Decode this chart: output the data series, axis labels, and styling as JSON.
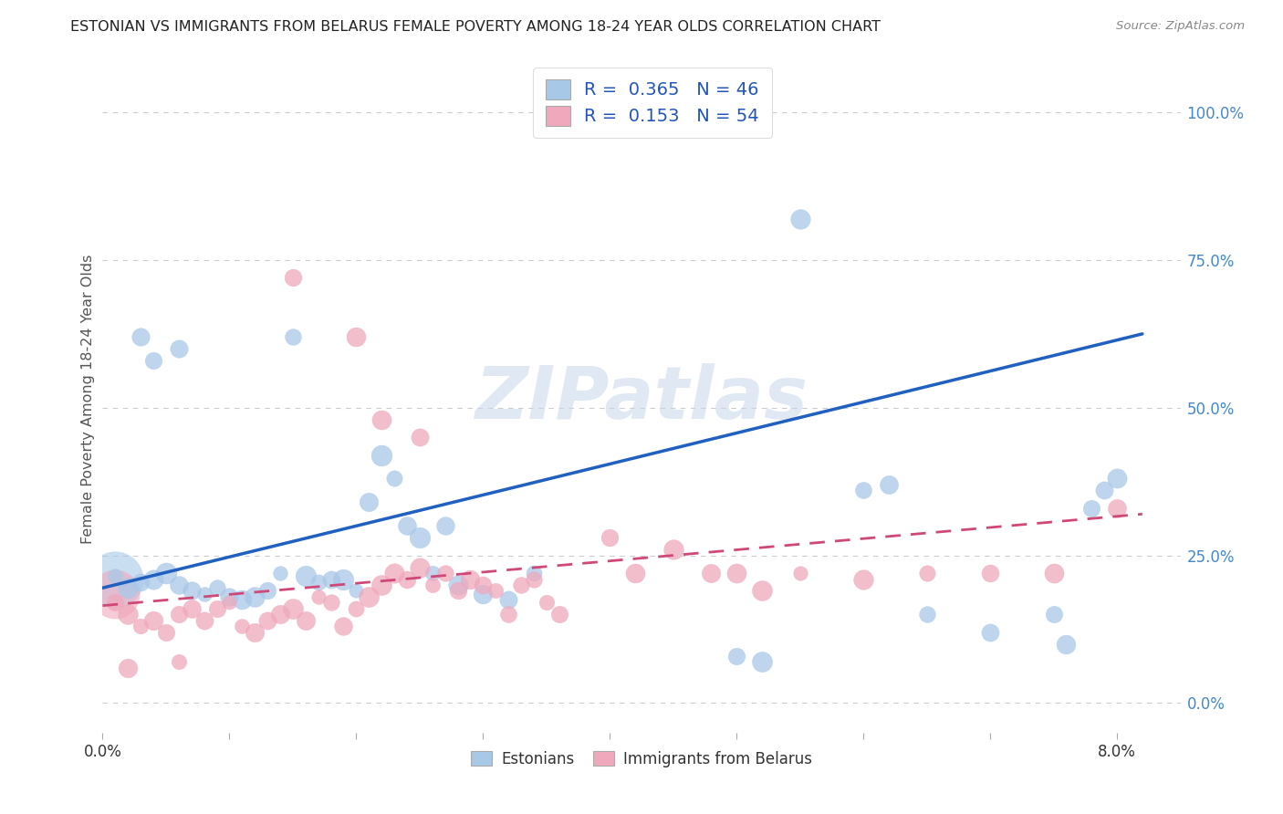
{
  "title": "ESTONIAN VS IMMIGRANTS FROM BELARUS FEMALE POVERTY AMONG 18-24 YEAR OLDS CORRELATION CHART",
  "source": "Source: ZipAtlas.com",
  "ylabel": "Female Poverty Among 18-24 Year Olds",
  "yticks": [
    "0.0%",
    "25.0%",
    "50.0%",
    "75.0%",
    "100.0%"
  ],
  "ytick_vals": [
    0.0,
    0.25,
    0.5,
    0.75,
    1.0
  ],
  "legend_blue_R": "0.365",
  "legend_blue_N": "46",
  "legend_pink_R": "0.153",
  "legend_pink_N": "54",
  "legend_label_blue": "Estonians",
  "legend_label_pink": "Immigrants from Belarus",
  "blue_color": "#a8c8e8",
  "pink_color": "#f0a8bc",
  "line_blue_color": "#2060c0",
  "line_pink_color": "#d04878",
  "watermark": "ZIPatlas",
  "blue_scatter": [
    [
      0.001,
      0.215
    ],
    [
      0.002,
      0.195
    ],
    [
      0.003,
      0.205
    ],
    [
      0.004,
      0.21
    ],
    [
      0.005,
      0.22
    ],
    [
      0.006,
      0.2
    ],
    [
      0.007,
      0.19
    ],
    [
      0.008,
      0.185
    ],
    [
      0.009,
      0.195
    ],
    [
      0.01,
      0.18
    ],
    [
      0.011,
      0.175
    ],
    [
      0.012,
      0.18
    ],
    [
      0.013,
      0.19
    ],
    [
      0.014,
      0.22
    ],
    [
      0.015,
      0.62
    ],
    [
      0.016,
      0.215
    ],
    [
      0.017,
      0.205
    ],
    [
      0.018,
      0.21
    ],
    [
      0.019,
      0.21
    ],
    [
      0.02,
      0.19
    ],
    [
      0.021,
      0.34
    ],
    [
      0.022,
      0.42
    ],
    [
      0.023,
      0.38
    ],
    [
      0.024,
      0.3
    ],
    [
      0.025,
      0.28
    ],
    [
      0.026,
      0.22
    ],
    [
      0.027,
      0.3
    ],
    [
      0.028,
      0.2
    ],
    [
      0.03,
      0.185
    ],
    [
      0.032,
      0.175
    ],
    [
      0.034,
      0.22
    ],
    [
      0.003,
      0.62
    ],
    [
      0.004,
      0.58
    ],
    [
      0.006,
      0.6
    ],
    [
      0.05,
      0.08
    ],
    [
      0.052,
      0.07
    ],
    [
      0.055,
      0.82
    ],
    [
      0.06,
      0.36
    ],
    [
      0.062,
      0.37
    ],
    [
      0.065,
      0.15
    ],
    [
      0.07,
      0.12
    ],
    [
      0.075,
      0.15
    ],
    [
      0.076,
      0.1
    ],
    [
      0.078,
      0.33
    ],
    [
      0.079,
      0.36
    ],
    [
      0.08,
      0.38
    ]
  ],
  "pink_scatter": [
    [
      0.001,
      0.17
    ],
    [
      0.002,
      0.15
    ],
    [
      0.003,
      0.13
    ],
    [
      0.004,
      0.14
    ],
    [
      0.005,
      0.12
    ],
    [
      0.006,
      0.15
    ],
    [
      0.007,
      0.16
    ],
    [
      0.008,
      0.14
    ],
    [
      0.009,
      0.16
    ],
    [
      0.01,
      0.17
    ],
    [
      0.011,
      0.13
    ],
    [
      0.012,
      0.12
    ],
    [
      0.013,
      0.14
    ],
    [
      0.014,
      0.15
    ],
    [
      0.015,
      0.16
    ],
    [
      0.016,
      0.14
    ],
    [
      0.017,
      0.18
    ],
    [
      0.018,
      0.17
    ],
    [
      0.019,
      0.13
    ],
    [
      0.02,
      0.16
    ],
    [
      0.021,
      0.18
    ],
    [
      0.022,
      0.2
    ],
    [
      0.023,
      0.22
    ],
    [
      0.024,
      0.21
    ],
    [
      0.025,
      0.23
    ],
    [
      0.026,
      0.2
    ],
    [
      0.027,
      0.22
    ],
    [
      0.028,
      0.19
    ],
    [
      0.029,
      0.21
    ],
    [
      0.03,
      0.2
    ],
    [
      0.031,
      0.19
    ],
    [
      0.032,
      0.15
    ],
    [
      0.033,
      0.2
    ],
    [
      0.034,
      0.21
    ],
    [
      0.035,
      0.17
    ],
    [
      0.036,
      0.15
    ],
    [
      0.015,
      0.72
    ],
    [
      0.02,
      0.62
    ],
    [
      0.022,
      0.48
    ],
    [
      0.025,
      0.45
    ],
    [
      0.04,
      0.28
    ],
    [
      0.042,
      0.22
    ],
    [
      0.045,
      0.26
    ],
    [
      0.048,
      0.22
    ],
    [
      0.05,
      0.22
    ],
    [
      0.052,
      0.19
    ],
    [
      0.055,
      0.22
    ],
    [
      0.06,
      0.21
    ],
    [
      0.065,
      0.22
    ],
    [
      0.07,
      0.22
    ],
    [
      0.075,
      0.22
    ],
    [
      0.002,
      0.06
    ],
    [
      0.006,
      0.07
    ],
    [
      0.08,
      0.33
    ]
  ],
  "blue_line": [
    [
      0.0,
      0.195
    ],
    [
      0.082,
      0.625
    ]
  ],
  "pink_line": [
    [
      0.0,
      0.165
    ],
    [
      0.082,
      0.32
    ]
  ],
  "xlim": [
    0.0,
    0.085
  ],
  "ylim": [
    -0.05,
    1.08
  ]
}
